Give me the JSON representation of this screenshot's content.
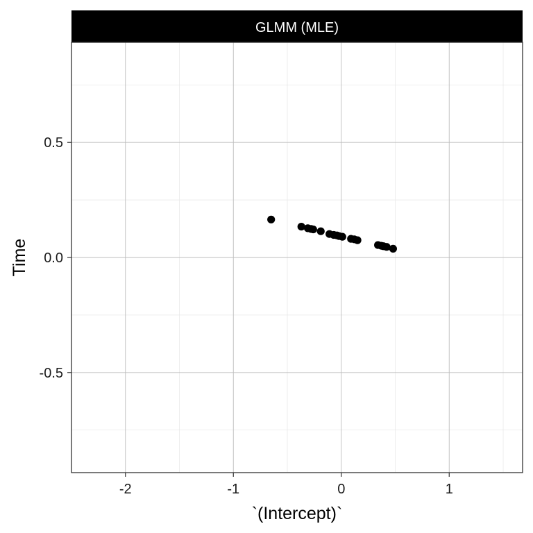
{
  "chart_data": {
    "type": "scatter",
    "panel_title": "GLMM (MLE)",
    "xlabel": "`(Intercept)`",
    "ylabel": "Time",
    "xlim": [
      -2.5,
      1.68
    ],
    "ylim": [
      -0.935,
      0.935
    ],
    "x_ticks": [
      -2,
      -1,
      0,
      1
    ],
    "x_tick_labels": [
      "-2",
      "-1",
      "0",
      "1"
    ],
    "y_ticks": [
      -0.5,
      0.0,
      0.5
    ],
    "y_tick_labels": [
      "-0.5",
      "0.0",
      "0.5"
    ],
    "grid": true,
    "point_color": "#000000",
    "points": [
      {
        "x": -0.65,
        "y": 0.165
      },
      {
        "x": -0.37,
        "y": 0.134
      },
      {
        "x": -0.31,
        "y": 0.127
      },
      {
        "x": -0.28,
        "y": 0.124
      },
      {
        "x": -0.26,
        "y": 0.122
      },
      {
        "x": -0.19,
        "y": 0.114
      },
      {
        "x": -0.11,
        "y": 0.102
      },
      {
        "x": -0.07,
        "y": 0.098
      },
      {
        "x": -0.04,
        "y": 0.096
      },
      {
        "x": -0.02,
        "y": 0.093
      },
      {
        "x": 0.01,
        "y": 0.09
      },
      {
        "x": 0.09,
        "y": 0.081
      },
      {
        "x": 0.12,
        "y": 0.079
      },
      {
        "x": 0.15,
        "y": 0.075
      },
      {
        "x": 0.34,
        "y": 0.054
      },
      {
        "x": 0.37,
        "y": 0.051
      },
      {
        "x": 0.39,
        "y": 0.049
      },
      {
        "x": 0.42,
        "y": 0.046
      },
      {
        "x": 0.48,
        "y": 0.038
      }
    ]
  }
}
